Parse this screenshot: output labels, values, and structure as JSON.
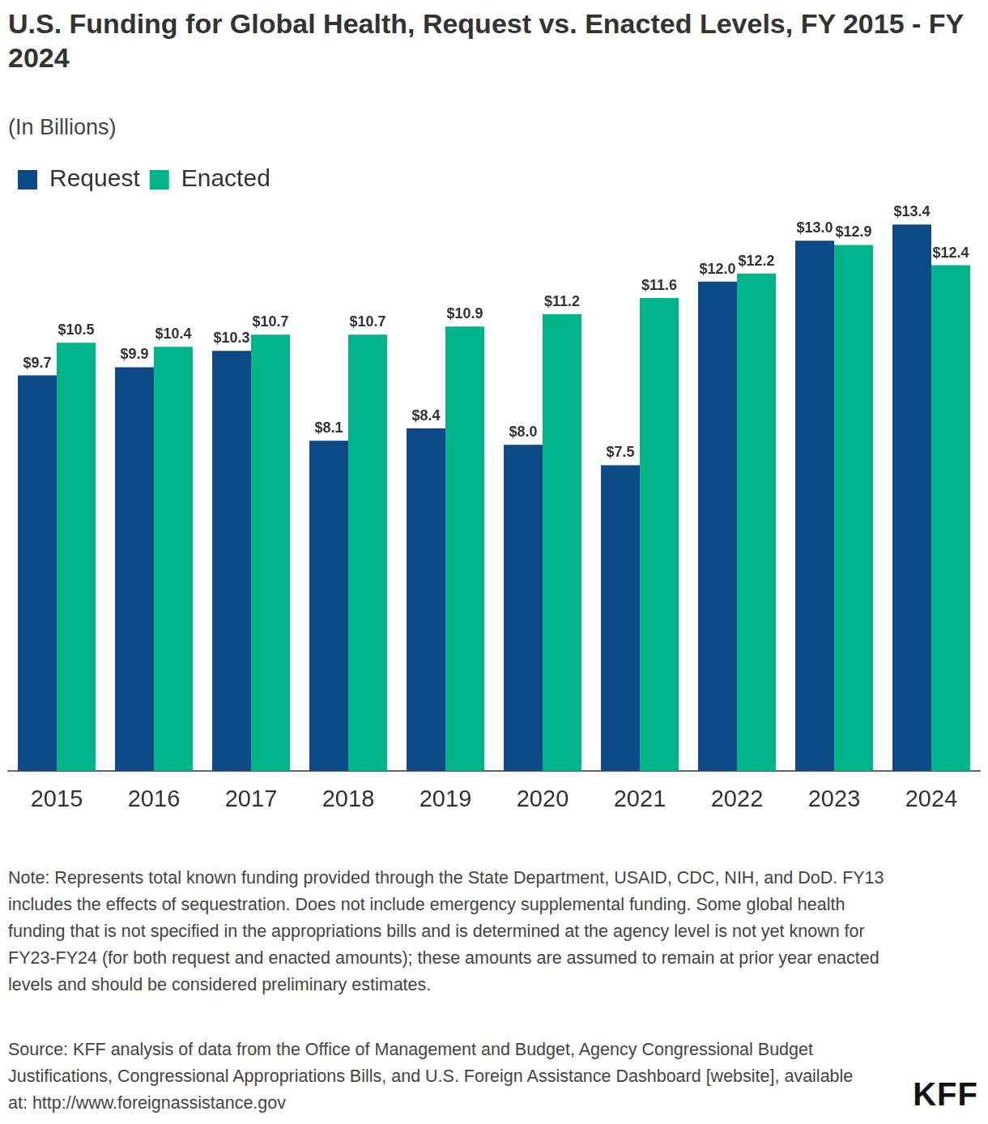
{
  "chart_data": {
    "type": "bar",
    "title": "U.S. Funding for Global Health, Request vs. Enacted Levels, FY 2015 - FY 2024",
    "subtitle": "(In Billions)",
    "categories": [
      "2015",
      "2016",
      "2017",
      "2018",
      "2019",
      "2020",
      "2021",
      "2022",
      "2023",
      "2024"
    ],
    "series": [
      {
        "name": "Request",
        "color": "#0b4a86",
        "values": [
          9.7,
          9.9,
          10.3,
          8.1,
          8.4,
          8.0,
          7.5,
          12.0,
          13.0,
          13.4
        ],
        "value_labels": [
          "$9.7",
          "$9.9",
          "$10.3",
          "$8.1",
          "$8.4",
          "$8.0",
          "$7.5",
          "$12.0",
          "$13.0",
          "$13.4"
        ]
      },
      {
        "name": "Enacted",
        "color": "#00b48a",
        "values": [
          10.5,
          10.4,
          10.7,
          10.7,
          10.9,
          11.2,
          11.6,
          12.2,
          12.9,
          12.4
        ],
        "value_labels": [
          "$10.5",
          "$10.4",
          "$10.7",
          "$10.7",
          "$10.9",
          "$11.2",
          "$11.6",
          "$12.2",
          "$12.9",
          "$12.4"
        ]
      }
    ],
    "ylim": [
      0,
      14
    ],
    "grid": false,
    "legend": "top-left",
    "data_labels": true,
    "tick_labels": "x",
    "note": "Note: Represents total known funding provided through the State Department, USAID, CDC, NIH, and DoD. FY13 includes the effects of sequestration. Does not include emergency supplemental funding. Some global health funding that is not specified in the appropriations bills and is determined at the agency level is not yet known for FY23-FY24 (for both request and enacted amounts); these amounts are assumed to remain at prior year enacted levels and should be considered preliminary estimates.",
    "source": "Source: KFF analysis of data from the Office of Management and Budget, Agency Congressional Budget Justifications, Congressional Appropriations Bills, and U.S. Foreign Assistance Dashboard [website], available at: http://www.foreignassistance.gov",
    "logo": "KFF"
  }
}
